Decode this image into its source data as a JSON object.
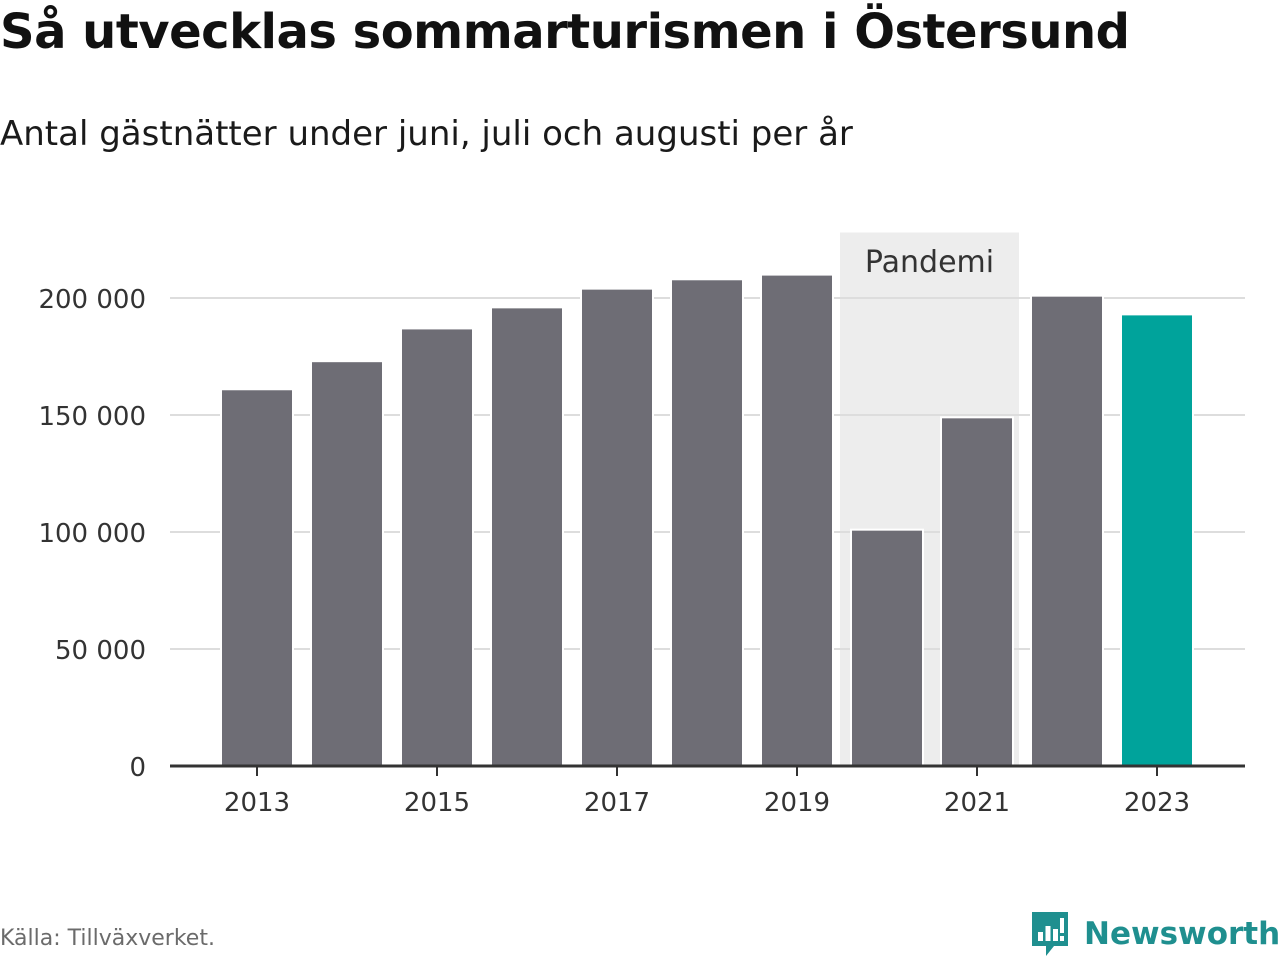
{
  "title": "Så utvecklas sommarturismen i Östersund",
  "subtitle": "Antal gästnätter under juni, juli och augusti per år",
  "source": "Källa: Tillväxverket.",
  "brand": {
    "name": "Newsworthy",
    "icon": "newsworthy-logo-icon"
  },
  "colors": {
    "bar": "#6e6d75",
    "highlight": "#00a39b",
    "band": "#ededed",
    "grid": "#dddddd",
    "brand": "#1f8f8f"
  },
  "chart_data": {
    "type": "bar",
    "title": "Så utvecklas sommarturismen i Östersund",
    "subtitle": "Antal gästnätter under juni, juli och augusti per år",
    "categories": [
      "2013",
      "2014",
      "2015",
      "2016",
      "2017",
      "2018",
      "2019",
      "2020",
      "2021",
      "2022",
      "2023"
    ],
    "values": [
      161000,
      173000,
      187000,
      196000,
      204000,
      208000,
      210000,
      101000,
      149000,
      201000,
      193000
    ],
    "highlight_category": "2023",
    "x_tick_labels": [
      "2013",
      "2015",
      "2017",
      "2019",
      "2021",
      "2023"
    ],
    "y_ticks": [
      0,
      50000,
      100000,
      150000,
      200000
    ],
    "y_tick_labels": [
      "0",
      "50 000",
      "100 000",
      "150 000",
      "200 000"
    ],
    "ylim": [
      0,
      230000
    ],
    "grid": true,
    "annotation": {
      "label": "Pandemi",
      "from": "2020",
      "to": "2021"
    }
  }
}
